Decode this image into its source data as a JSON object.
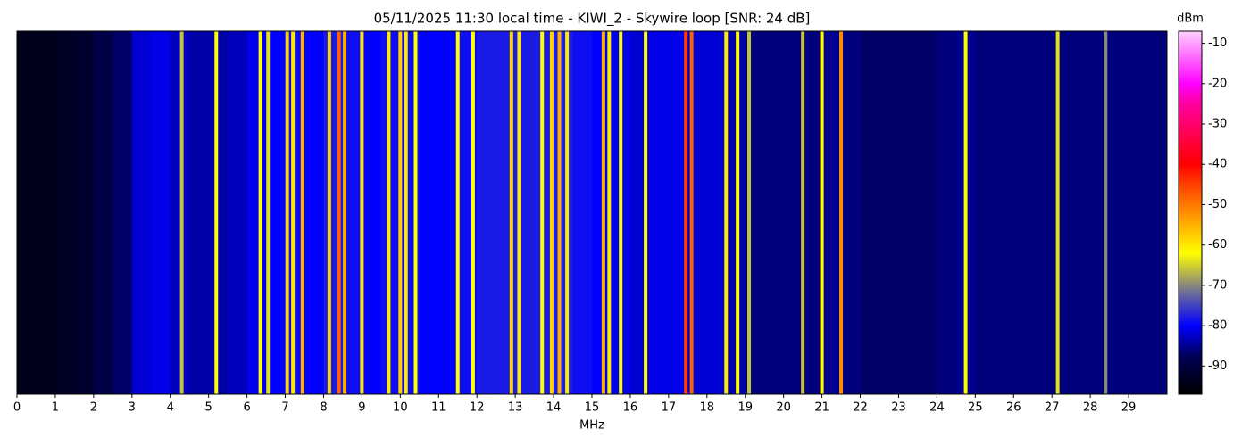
{
  "chart_data": {
    "type": "spectrogram",
    "title": "05/11/2025 11:30 local time - KIWI_2 - Skywire loop [SNR: 24 dB]",
    "xlabel": "MHz",
    "colorbar_label": "dBm",
    "xlim": [
      0,
      30
    ],
    "xticks": [
      0,
      1,
      2,
      3,
      4,
      5,
      6,
      7,
      8,
      9,
      10,
      11,
      12,
      13,
      14,
      15,
      16,
      17,
      18,
      19,
      20,
      21,
      22,
      23,
      24,
      25,
      26,
      27,
      28,
      29
    ],
    "clim": [
      -97,
      -7
    ],
    "cticks": [
      -90,
      -80,
      -70,
      -60,
      -50,
      -40,
      -30,
      -20,
      -10
    ],
    "colormap": [
      [
        -97,
        "#000000"
      ],
      [
        -88,
        "#000050"
      ],
      [
        -80,
        "#0000ff"
      ],
      [
        -72,
        "#6a6a9a"
      ],
      [
        -62,
        "#ffff00"
      ],
      [
        -45,
        "#ff4000"
      ],
      [
        -40,
        "#ff0000"
      ],
      [
        -25,
        "#ff00a0"
      ],
      [
        -20,
        "#ff00ff"
      ],
      [
        -7,
        "#ffd0ff"
      ]
    ],
    "x": [
      0.25,
      0.75,
      1.25,
      1.75,
      2.25,
      2.75,
      3.25,
      3.75,
      4.25,
      4.75,
      5.25,
      5.75,
      6.25,
      6.75,
      7.25,
      7.75,
      8.25,
      8.75,
      9.25,
      9.75,
      10.25,
      10.75,
      11.25,
      11.75,
      12.25,
      12.75,
      13.25,
      13.75,
      14.25,
      14.75,
      15.25,
      15.75,
      16.25,
      16.75,
      17.25,
      17.75,
      18.25,
      18.75,
      19.25,
      19.75,
      20.25,
      20.75,
      21.25,
      21.75,
      22.25,
      22.75,
      23.25,
      23.75,
      24.25,
      24.75,
      25.25,
      25.75,
      26.25,
      26.75,
      27.25,
      27.75,
      28.25,
      28.75,
      29.25,
      29.75
    ],
    "values": [
      -94,
      -94,
      -93,
      -92,
      -89,
      -87,
      -82,
      -81,
      -83,
      -84,
      -84,
      -83,
      -81,
      -80,
      -79,
      -80,
      -78,
      -79,
      -80,
      -79,
      -79,
      -80,
      -80,
      -79,
      -78,
      -78,
      -78,
      -78,
      -78,
      -79,
      -80,
      -81,
      -82,
      -81,
      -81,
      -82,
      -82,
      -84,
      -86,
      -86,
      -86,
      -86,
      -85,
      -86,
      -87,
      -87,
      -87,
      -87,
      -86,
      -85,
      -86,
      -86,
      -86,
      -86,
      -86,
      -86,
      -86,
      -86,
      -86,
      -86
    ],
    "lines": {
      "x": [
        4.3,
        5.2,
        6.35,
        6.55,
        7.05,
        7.2,
        7.45,
        8.15,
        8.4,
        8.55,
        9.0,
        9.7,
        10.0,
        10.15,
        10.4,
        11.5,
        11.9,
        12.9,
        13.1,
        13.7,
        13.95,
        14.15,
        14.35,
        15.3,
        15.45,
        15.75,
        16.4,
        17.45,
        17.6,
        18.5,
        18.8,
        19.1,
        20.5,
        21.0,
        21.5,
        24.75,
        27.15,
        28.4
      ],
      "values": [
        -66,
        -62,
        -62,
        -64,
        -58,
        -60,
        -55,
        -58,
        -48,
        -55,
        -60,
        -60,
        -58,
        -60,
        -62,
        -62,
        -62,
        -58,
        -60,
        -62,
        -58,
        -55,
        -60,
        -55,
        -60,
        -62,
        -62,
        -45,
        -48,
        -60,
        -62,
        -66,
        -66,
        -62,
        -52,
        -62,
        -64,
        -70
      ]
    }
  }
}
